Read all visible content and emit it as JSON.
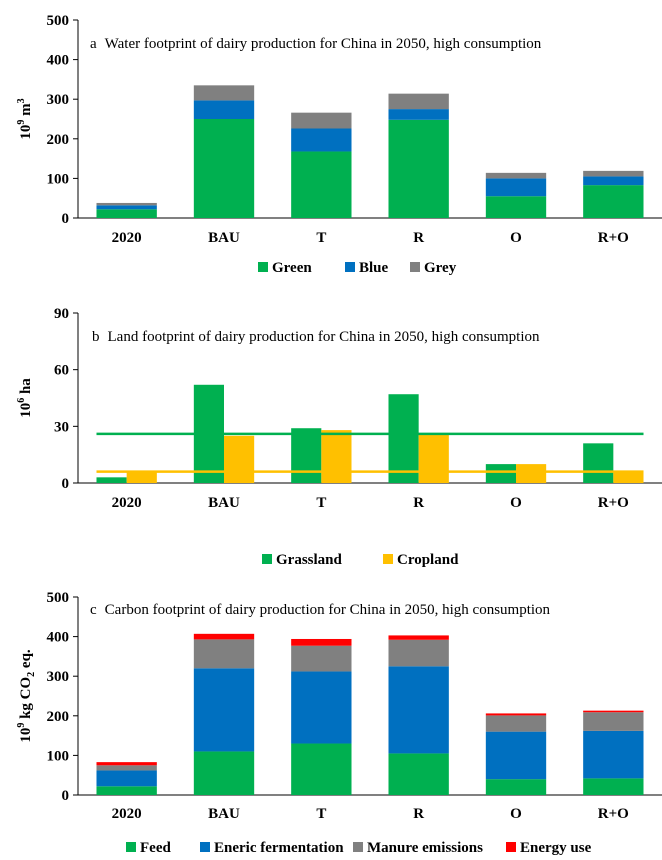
{
  "colors": {
    "green": "#00b050",
    "blue": "#0070c0",
    "grey": "#808080",
    "yellow": "#ffc000",
    "red": "#ff0000",
    "line_green": "#00b050",
    "line_yellow": "#ffc000"
  },
  "chart_data": [
    {
      "type": "bar",
      "stacked": true,
      "panel": "a",
      "title": "Water footprint of dairy production for China in 2050, high consumption",
      "ylabel": "10",
      "ylabel_sup": "9",
      "ylabel_unit": " m",
      "ylabel_unit_sup": "3",
      "ylim": [
        0,
        500
      ],
      "yticks": [
        "0",
        "100",
        "200",
        "300",
        "400",
        "500"
      ],
      "categories": [
        "2020",
        "BAU",
        "T",
        "R",
        "O",
        "R+O"
      ],
      "legend": "bottom",
      "series": [
        {
          "name": "Green",
          "color": "#00b050",
          "values": [
            22,
            250,
            168,
            248,
            55,
            83
          ]
        },
        {
          "name": "Blue",
          "color": "#0070c0",
          "values": [
            10,
            47,
            58,
            27,
            45,
            22
          ]
        },
        {
          "name": "Grey",
          "color": "#808080",
          "values": [
            6,
            38,
            40,
            39,
            14,
            14
          ]
        }
      ]
    },
    {
      "type": "bar",
      "stacked": false,
      "panel": "b",
      "title": "Land footprint of dairy production for China in 2050, high consumption",
      "ylabel": "10",
      "ylabel_sup": "6",
      "ylabel_unit": " ha",
      "ylabel_unit_sup": "",
      "ylim": [
        0,
        90
      ],
      "yticks": [
        "0",
        "30",
        "60",
        "90"
      ],
      "categories": [
        "2020",
        "BAU",
        "T",
        "R",
        "O",
        "R+O"
      ],
      "legend": "bottom",
      "series": [
        {
          "name": "Grassland",
          "color": "#00b050",
          "values": [
            3,
            52,
            29,
            47,
            10,
            21
          ]
        },
        {
          "name": "Cropland",
          "color": "#ffc000",
          "values": [
            6,
            25,
            28,
            26,
            10,
            6.5
          ]
        }
      ],
      "reference_lines": [
        {
          "color": "#00b050",
          "value": 26,
          "from_category": 0,
          "to_category": 5
        },
        {
          "color": "#ffc000",
          "value": 6,
          "from_category": 0,
          "to_category": 5
        }
      ]
    },
    {
      "type": "bar",
      "stacked": true,
      "panel": "c",
      "title": "Carbon footprint of dairy production for China in 2050, high consumption",
      "ylabel": "10",
      "ylabel_sup": "9",
      "ylabel_unit": " kg CO",
      "ylabel_unit_sub": "2",
      "ylabel_unit_tail": " eq.",
      "ylim": [
        0,
        500
      ],
      "yticks": [
        "0",
        "100",
        "200",
        "300",
        "400",
        "500"
      ],
      "categories": [
        "2020",
        "BAU",
        "T",
        "R",
        "O",
        "R+O"
      ],
      "legend": "bottom",
      "series": [
        {
          "name": "Feed",
          "color": "#00b050",
          "values": [
            22,
            110,
            130,
            105,
            40,
            42
          ]
        },
        {
          "name": "Eneric fermentation",
          "color": "#0070c0",
          "values": [
            40,
            210,
            182,
            220,
            120,
            120
          ]
        },
        {
          "name": "Manure emissions",
          "color": "#808080",
          "values": [
            13,
            73,
            65,
            67,
            41,
            47
          ]
        },
        {
          "name": "Energy use",
          "color": "#ff0000",
          "values": [
            8,
            14,
            17,
            11,
            5,
            4
          ]
        }
      ]
    }
  ]
}
